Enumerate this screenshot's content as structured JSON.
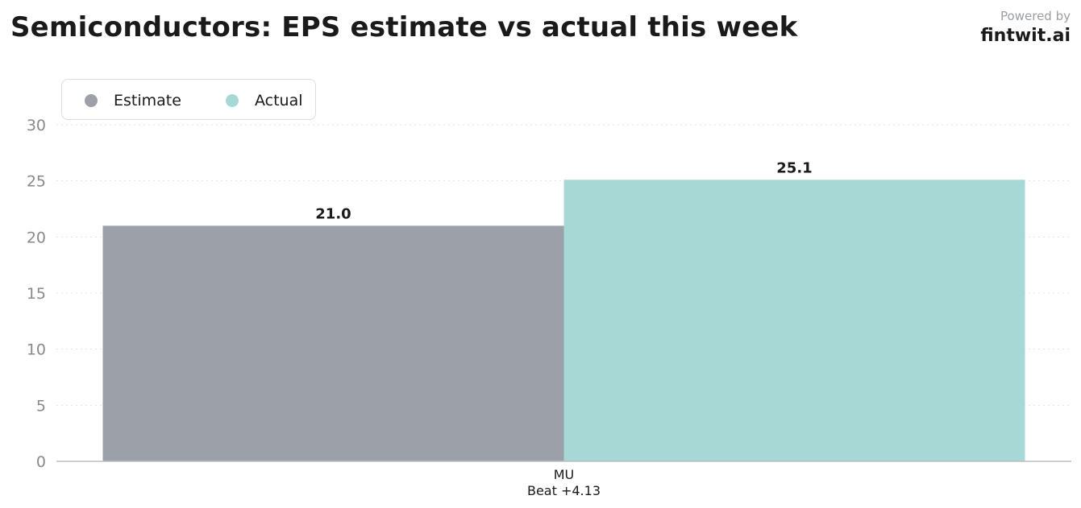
{
  "header": {
    "title": "Semiconductors: EPS estimate vs actual this week"
  },
  "branding": {
    "powered_by": "Powered by",
    "brand": "fintwit.ai"
  },
  "legend": {
    "placement": "top-left",
    "items": [
      {
        "label": "Estimate",
        "color": "#9ca0a8"
      },
      {
        "label": "Actual",
        "color": "#a8d8d5"
      }
    ]
  },
  "chart_data": {
    "type": "bar",
    "title": "Semiconductors: EPS estimate vs actual this week",
    "categories": [
      "MU"
    ],
    "category_sublabels": [
      "Beat +4.13"
    ],
    "series": [
      {
        "name": "Estimate",
        "values": [
          21.0
        ],
        "labels": [
          "21.0"
        ],
        "color": "#9ca0a8"
      },
      {
        "name": "Actual",
        "values": [
          25.1
        ],
        "labels": [
          "25.1"
        ],
        "color": "#a8d8d5"
      }
    ],
    "xlabel": "",
    "ylabel": "",
    "ylim": [
      0,
      30
    ],
    "yticks": [
      0,
      5,
      10,
      15,
      20,
      25,
      30
    ],
    "ytick_labels": [
      "0",
      "5",
      "10",
      "15",
      "20",
      "25",
      "30"
    ],
    "grid": true,
    "legend_placement": "top-left"
  }
}
